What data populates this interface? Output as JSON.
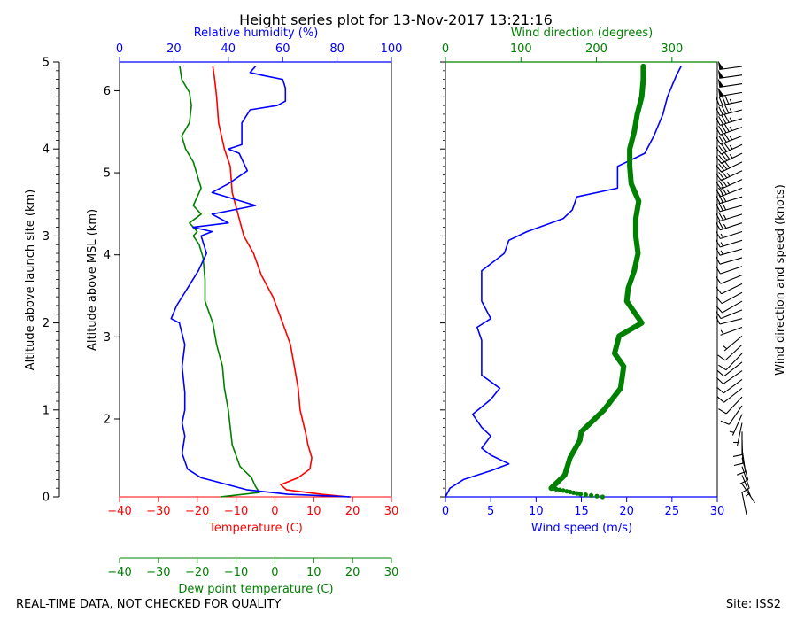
{
  "title": "Height series plot for 13-Nov-2017 13:21:16",
  "footer": {
    "left": "REAL-TIME DATA, NOT CHECKED FOR QUALITY",
    "right": "Site: ISS2"
  },
  "colors": {
    "temperature": "#ff0000",
    "dewpoint": "#008000",
    "humidity": "#0000ff",
    "wind_speed": "#0000ff",
    "wind_direction": "#008000",
    "barbs": "#000000"
  },
  "chart_data": [
    {
      "type": "line",
      "name": "thermo-panel",
      "axes": {
        "temperature": {
          "label": "Temperature (C)",
          "range": [
            -40,
            30
          ],
          "ticks": [
            "−40",
            "−30",
            "−20",
            "−10",
            "0",
            "10",
            "20",
            "30"
          ]
        },
        "dewpoint": {
          "label": "Dew point temperature (C)",
          "range": [
            -40,
            30
          ],
          "ticks": [
            "−40",
            "−30",
            "−20",
            "−10",
            "0",
            "10",
            "20",
            "30"
          ]
        },
        "humidity": {
          "label": "Relative humidity (%)",
          "range": [
            0,
            100
          ],
          "ticks": [
            "0",
            "20",
            "40",
            "60",
            "80",
            "100"
          ]
        },
        "alt_msl": {
          "label": "Altitude above MSL (km)",
          "range": [
            1.05,
            6.35
          ],
          "ticks": [
            "2",
            "3",
            "4",
            "5",
            "6"
          ]
        },
        "alt_site": {
          "label": "Altitude above launch site (km)",
          "range": [
            0,
            5
          ],
          "ticks": [
            "0",
            "1",
            "2",
            "3",
            "4",
            "5"
          ]
        }
      },
      "grid": false,
      "series": [
        {
          "name": "Temperature",
          "axis": "temperature",
          "points": [
            [
              19,
              0.0
            ],
            [
              12,
              0.03
            ],
            [
              3,
              0.08
            ],
            [
              1.5,
              0.14
            ],
            [
              6,
              0.22
            ],
            [
              9,
              0.32
            ],
            [
              9.5,
              0.45
            ],
            [
              8.5,
              0.6
            ],
            [
              8,
              0.72
            ],
            [
              6.5,
              1.0
            ],
            [
              6,
              1.25
            ],
            [
              5,
              1.5
            ],
            [
              4,
              1.75
            ],
            [
              2,
              2.0
            ],
            [
              -0.5,
              2.3
            ],
            [
              -3.5,
              2.55
            ],
            [
              -5.5,
              2.8
            ],
            [
              -8,
              3.0
            ],
            [
              -9.5,
              3.25
            ],
            [
              -11,
              3.5
            ],
            [
              -11.5,
              3.8
            ],
            [
              -13,
              4.0
            ],
            [
              -14.5,
              4.3
            ],
            [
              -15,
              4.6
            ],
            [
              -15.5,
              4.8
            ],
            [
              -16,
              4.95
            ]
          ]
        },
        {
          "name": "Dew point",
          "axis": "dewpoint",
          "points": [
            [
              -14,
              0.0
            ],
            [
              -4,
              0.05
            ],
            [
              -5,
              0.12
            ],
            [
              -6,
              0.22
            ],
            [
              -9,
              0.35
            ],
            [
              -11,
              0.6
            ],
            [
              -11.5,
              0.8
            ],
            [
              -12,
              1.0
            ],
            [
              -13,
              1.25
            ],
            [
              -13.5,
              1.5
            ],
            [
              -15,
              1.75
            ],
            [
              -16,
              2.0
            ],
            [
              -18,
              2.25
            ],
            [
              -18,
              2.5
            ],
            [
              -18.5,
              2.75
            ],
            [
              -19.5,
              2.9
            ],
            [
              -21,
              3.0
            ],
            [
              -20,
              3.05
            ],
            [
              -22,
              3.15
            ],
            [
              -19,
              3.25
            ],
            [
              -21,
              3.35
            ],
            [
              -20,
              3.45
            ],
            [
              -19,
              3.55
            ],
            [
              -20,
              3.7
            ],
            [
              -21,
              3.85
            ],
            [
              -23,
              4.0
            ],
            [
              -24,
              4.15
            ],
            [
              -22,
              4.3
            ],
            [
              -21.5,
              4.5
            ],
            [
              -22,
              4.65
            ],
            [
              -24,
              4.8
            ],
            [
              -24.5,
              4.95
            ]
          ]
        },
        {
          "name": "Relative humidity",
          "axis": "humidity",
          "points": [
            [
              85,
              0.0
            ],
            [
              62,
              0.03
            ],
            [
              47,
              0.08
            ],
            [
              30,
              0.22
            ],
            [
              25,
              0.32
            ],
            [
              23,
              0.5
            ],
            [
              24,
              0.7
            ],
            [
              23,
              0.85
            ],
            [
              24,
              1.0
            ],
            [
              24,
              1.2
            ],
            [
              23,
              1.5
            ],
            [
              24,
              1.75
            ],
            [
              22,
              2.0
            ],
            [
              19,
              2.05
            ],
            [
              21,
              2.2
            ],
            [
              25,
              2.4
            ],
            [
              29,
              2.6
            ],
            [
              32,
              2.8
            ],
            [
              30,
              3.0
            ],
            [
              34,
              3.05
            ],
            [
              27,
              3.1
            ],
            [
              40,
              3.15
            ],
            [
              34,
              3.25
            ],
            [
              50,
              3.35
            ],
            [
              34,
              3.5
            ],
            [
              40,
              3.6
            ],
            [
              47,
              3.75
            ],
            [
              44,
              3.95
            ],
            [
              40,
              4.0
            ],
            [
              45,
              4.05
            ],
            [
              45,
              4.3
            ],
            [
              48,
              4.45
            ],
            [
              58,
              4.5
            ],
            [
              61,
              4.55
            ],
            [
              61,
              4.7
            ],
            [
              60,
              4.8
            ],
            [
              52,
              4.85
            ],
            [
              48,
              4.88
            ],
            [
              50,
              4.95
            ]
          ]
        }
      ]
    },
    {
      "type": "line",
      "name": "wind-panel",
      "axes": {
        "wind_speed": {
          "label": "Wind speed (m/s)",
          "range": [
            0,
            30
          ],
          "ticks": [
            "0",
            "5",
            "10",
            "15",
            "20",
            "25",
            "30"
          ]
        },
        "wind_direction": {
          "label": "Wind direction (degrees)",
          "range": [
            0,
            360
          ],
          "ticks": [
            "0",
            "100",
            "200",
            "300"
          ]
        },
        "barbs": {
          "label": "Wind direction and speed (knots)"
        }
      },
      "grid": false,
      "series": [
        {
          "name": "Wind speed",
          "axis": "wind_speed",
          "points": [
            [
              0,
              0.0
            ],
            [
              0.5,
              0.1
            ],
            [
              2,
              0.2
            ],
            [
              5,
              0.3
            ],
            [
              7,
              0.38
            ],
            [
              5,
              0.48
            ],
            [
              4,
              0.56
            ],
            [
              5,
              0.7
            ],
            [
              4,
              0.8
            ],
            [
              3,
              0.95
            ],
            [
              5,
              1.12
            ],
            [
              6,
              1.25
            ],
            [
              4,
              1.4
            ],
            [
              4,
              1.6
            ],
            [
              4,
              1.8
            ],
            [
              3.5,
              1.95
            ],
            [
              5,
              2.05
            ],
            [
              4,
              2.25
            ],
            [
              4,
              2.4
            ],
            [
              4,
              2.6
            ],
            [
              6.5,
              2.8
            ],
            [
              7,
              2.95
            ],
            [
              9,
              3.05
            ],
            [
              13,
              3.2
            ],
            [
              14,
              3.3
            ],
            [
              14.5,
              3.45
            ],
            [
              19,
              3.55
            ],
            [
              19,
              3.8
            ],
            [
              22,
              3.95
            ],
            [
              23,
              4.15
            ],
            [
              24,
              4.4
            ],
            [
              24.5,
              4.6
            ],
            [
              25.5,
              4.85
            ],
            [
              26,
              4.95
            ]
          ]
        },
        {
          "name": "Wind direction",
          "axis": "wind_direction",
          "points": [
            [
              208,
              0.0
            ],
            [
              180,
              0.03
            ],
            [
              140,
              0.1
            ],
            [
              158,
              0.25
            ],
            [
              165,
              0.45
            ],
            [
              178,
              0.65
            ],
            [
              180,
              0.75
            ],
            [
              210,
              1.0
            ],
            [
              232,
              1.25
            ],
            [
              236,
              1.5
            ],
            [
              224,
              1.65
            ],
            [
              230,
              1.85
            ],
            [
              260,
              2.0
            ],
            [
              248,
              2.15
            ],
            [
              240,
              2.25
            ],
            [
              242,
              2.4
            ],
            [
              250,
              2.6
            ],
            [
              255,
              2.8
            ],
            [
              252,
              3.0
            ],
            [
              252,
              3.2
            ],
            [
              256,
              3.4
            ],
            [
              246,
              3.6
            ],
            [
              244,
              3.8
            ],
            [
              244,
              4.0
            ],
            [
              250,
              4.2
            ],
            [
              254,
              4.4
            ],
            [
              260,
              4.6
            ],
            [
              262,
              4.8
            ],
            [
              262,
              4.95
            ]
          ]
        }
      ]
    }
  ]
}
